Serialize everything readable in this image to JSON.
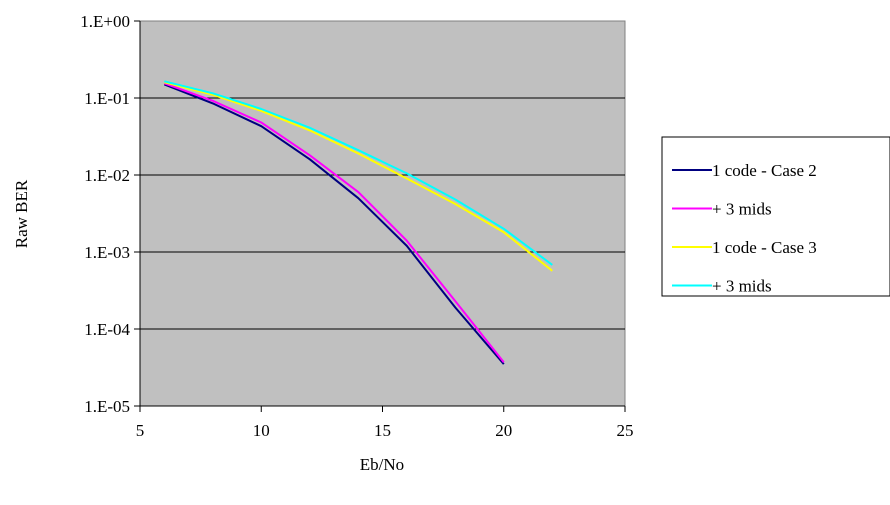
{
  "chart_data": {
    "type": "line",
    "title": "",
    "xlabel": "Eb/No",
    "ylabel": "Raw BER",
    "xlim": [
      5,
      25
    ],
    "ylim_log10": [
      -5,
      0
    ],
    "y_scale": "log",
    "grid": "horizontal",
    "plot_background": "#c0c0c0",
    "legend_position": "right",
    "x_ticks": [
      "5",
      "10",
      "15",
      "20",
      "25"
    ],
    "y_ticks": [
      "1.E+00",
      "1.E-01",
      "1.E-02",
      "1.E-03",
      "1.E-04",
      "1.E-05"
    ],
    "series": [
      {
        "name": "1 code - Case 2",
        "color": "#000080",
        "x": [
          6,
          8,
          10,
          12,
          14,
          16,
          18,
          20
        ],
        "y": [
          0.15,
          0.085,
          0.043,
          0.016,
          0.005,
          0.0012,
          0.00019,
          3.5e-05
        ]
      },
      {
        "name": "+ 3 mids",
        "color": "#ff00ff",
        "x": [
          6,
          8,
          10,
          12,
          14,
          16,
          18,
          20
        ],
        "y": [
          0.155,
          0.092,
          0.048,
          0.018,
          0.006,
          0.0014,
          0.00023,
          3.7e-05
        ]
      },
      {
        "name": "1 code - Case 3",
        "color": "#ffff00",
        "x": [
          6,
          8,
          10,
          12,
          14,
          16,
          18,
          20,
          22
        ],
        "y": [
          0.16,
          0.11,
          0.068,
          0.038,
          0.019,
          0.009,
          0.0042,
          0.0018,
          0.00057
        ]
      },
      {
        "name": "+ 3 mids",
        "color": "#00ffff",
        "x": [
          6,
          8,
          10,
          12,
          14,
          16,
          18,
          20,
          22
        ],
        "y": [
          0.165,
          0.115,
          0.072,
          0.041,
          0.021,
          0.0105,
          0.0048,
          0.002,
          0.00068
        ]
      }
    ]
  }
}
